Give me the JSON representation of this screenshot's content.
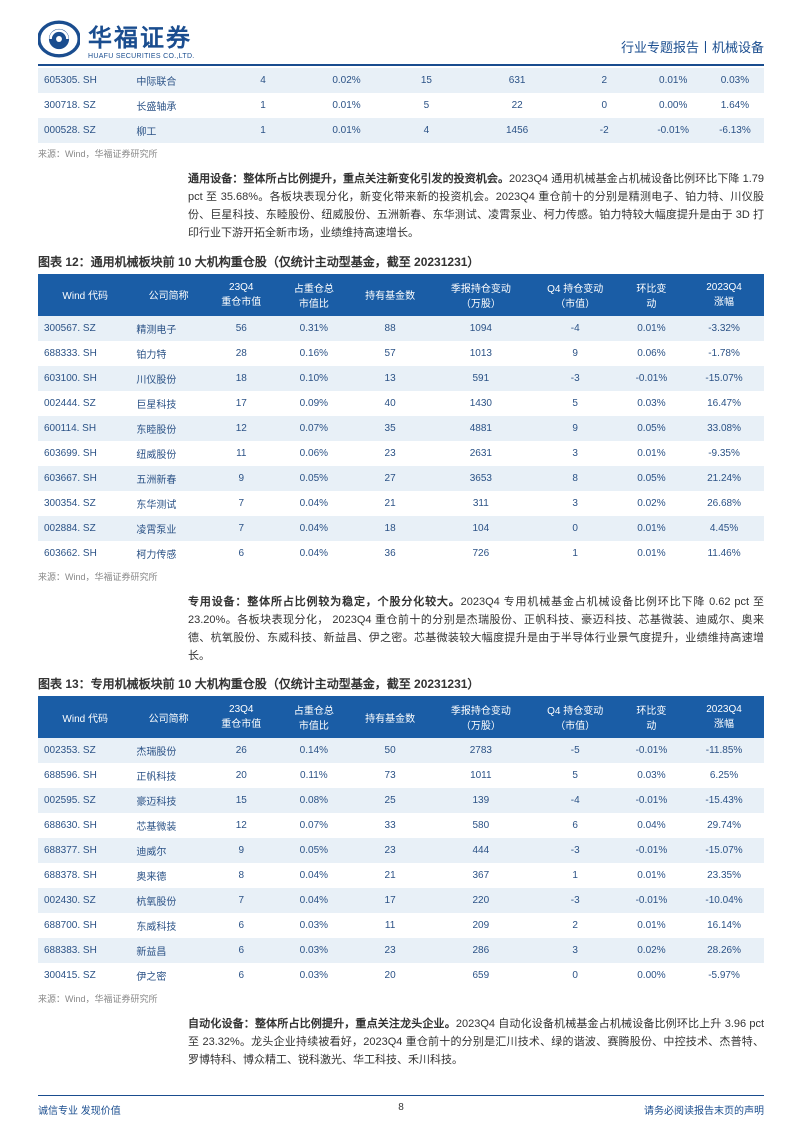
{
  "header": {
    "logo_cn": "华福证券",
    "logo_en": "HUAFU SECURITIES CO.,LTD.",
    "right": "行业专题报告丨机械设备"
  },
  "top_table": {
    "col_widths": [
      "13%",
      "12%",
      "12%",
      "11%",
      "11%",
      "14%",
      "10%",
      "9%",
      "8%"
    ],
    "rows": [
      {
        "cells": [
          "605305. SH",
          "中际联合",
          "4",
          "0.02%",
          "15",
          "631",
          "2",
          "0.01%",
          "0.03%"
        ],
        "bg": "row-light"
      },
      {
        "cells": [
          "300718. SZ",
          "长盛轴承",
          "1",
          "0.01%",
          "5",
          "22",
          "0",
          "0.00%",
          "1.64%"
        ],
        "bg": "row-white"
      },
      {
        "cells": [
          "000528. SZ",
          "柳工",
          "1",
          "0.01%",
          "4",
          "1456",
          "-2",
          "-0.01%",
          "-6.13%"
        ],
        "bg": "row-light"
      }
    ]
  },
  "source_text": "来源：Wind，华福证券研究所",
  "para1": {
    "bold": "通用设备：整体所占比例提升，重点关注新变化引发的投资机会。",
    "rest": "2023Q4 通用机械基金占机械设备比例环比下降 1.79 pct 至 35.68%。各板块表现分化，新变化带来新的投资机会。2023Q4 重仓前十的分别是精测电子、铂力特、川仪股份、巨星科技、东睦股份、纽威股份、五洲新春、东华测试、凌霄泵业、柯力传感。铂力特较大幅度提升是由于 3D 打印行业下游开拓全新市场，业绩维持高速增长。"
  },
  "table12_title": "图表 12：通用机械板块前 10 大机构重仓股（仅统计主动型基金，截至 20231231）",
  "table_headers": [
    "Wind 代码",
    "公司简称",
    "23Q4\n重仓市值",
    "占重仓总\n市值比",
    "持有基金数",
    "季报持仓变动\n（万股）",
    "Q4 持仓变动\n（市值）",
    "环比变\n动",
    "2023Q4\n涨幅"
  ],
  "col_widths_main": [
    "13%",
    "10%",
    "10%",
    "10%",
    "11%",
    "14%",
    "12%",
    "9%",
    "11%"
  ],
  "table12_rows": [
    {
      "cells": [
        "300567. SZ",
        "精测电子",
        "56",
        "0.31%",
        "88",
        "1094",
        "-4",
        "0.01%",
        "-3.32%"
      ],
      "bg": "row-light"
    },
    {
      "cells": [
        "688333. SH",
        "铂力特",
        "28",
        "0.16%",
        "57",
        "1013",
        "9",
        "0.06%",
        "-1.78%"
      ],
      "bg": "row-white"
    },
    {
      "cells": [
        "603100. SH",
        "川仪股份",
        "18",
        "0.10%",
        "13",
        "591",
        "-3",
        "-0.01%",
        "-15.07%"
      ],
      "bg": "row-light"
    },
    {
      "cells": [
        "002444. SZ",
        "巨星科技",
        "17",
        "0.09%",
        "40",
        "1430",
        "5",
        "0.03%",
        "16.47%"
      ],
      "bg": "row-white"
    },
    {
      "cells": [
        "600114. SH",
        "东睦股份",
        "12",
        "0.07%",
        "35",
        "4881",
        "9",
        "0.05%",
        "33.08%"
      ],
      "bg": "row-light"
    },
    {
      "cells": [
        "603699. SH",
        "纽威股份",
        "11",
        "0.06%",
        "23",
        "2631",
        "3",
        "0.01%",
        "-9.35%"
      ],
      "bg": "row-white"
    },
    {
      "cells": [
        "603667. SH",
        "五洲新春",
        "9",
        "0.05%",
        "27",
        "3653",
        "8",
        "0.05%",
        "21.24%"
      ],
      "bg": "row-light"
    },
    {
      "cells": [
        "300354. SZ",
        "东华测试",
        "7",
        "0.04%",
        "21",
        "311",
        "3",
        "0.02%",
        "26.68%"
      ],
      "bg": "row-white"
    },
    {
      "cells": [
        "002884. SZ",
        "凌霄泵业",
        "7",
        "0.04%",
        "18",
        "104",
        "0",
        "0.01%",
        "4.45%"
      ],
      "bg": "row-light"
    },
    {
      "cells": [
        "603662. SH",
        "柯力传感",
        "6",
        "0.04%",
        "36",
        "726",
        "1",
        "0.01%",
        "11.46%"
      ],
      "bg": "row-white"
    }
  ],
  "para2": {
    "bold": "专用设备：整体所占比例较为稳定，个股分化较大。",
    "rest": "2023Q4 专用机械基金占机械设备比例环比下降 0.62 pct 至 23.20%。各板块表现分化， 2023Q4 重仓前十的分别是杰瑞股份、正帆科技、豪迈科技、芯基微装、迪威尔、奥来德、杭氧股份、东威科技、新益昌、伊之密。芯基微装较大幅度提升是由于半导体行业景气度提升，业绩维持高速增长。"
  },
  "table13_title": "图表 13：专用机械板块前 10 大机构重仓股（仅统计主动型基金，截至 20231231）",
  "table13_rows": [
    {
      "cells": [
        "002353. SZ",
        "杰瑞股份",
        "26",
        "0.14%",
        "50",
        "2783",
        "-5",
        "-0.01%",
        "-11.85%"
      ],
      "bg": "row-light"
    },
    {
      "cells": [
        "688596. SH",
        "正帆科技",
        "20",
        "0.11%",
        "73",
        "1011",
        "5",
        "0.03%",
        "6.25%"
      ],
      "bg": "row-white"
    },
    {
      "cells": [
        "002595. SZ",
        "豪迈科技",
        "15",
        "0.08%",
        "25",
        "139",
        "-4",
        "-0.01%",
        "-15.43%"
      ],
      "bg": "row-light"
    },
    {
      "cells": [
        "688630. SH",
        "芯基微装",
        "12",
        "0.07%",
        "33",
        "580",
        "6",
        "0.04%",
        "29.74%"
      ],
      "bg": "row-white"
    },
    {
      "cells": [
        "688377. SH",
        "迪威尔",
        "9",
        "0.05%",
        "23",
        "444",
        "-3",
        "-0.01%",
        "-15.07%"
      ],
      "bg": "row-light"
    },
    {
      "cells": [
        "688378. SH",
        "奥来德",
        "8",
        "0.04%",
        "21",
        "367",
        "1",
        "0.01%",
        "23.35%"
      ],
      "bg": "row-white"
    },
    {
      "cells": [
        "002430. SZ",
        "杭氧股份",
        "7",
        "0.04%",
        "17",
        "220",
        "-3",
        "-0.01%",
        "-10.04%"
      ],
      "bg": "row-light"
    },
    {
      "cells": [
        "688700. SH",
        "东威科技",
        "6",
        "0.03%",
        "11",
        "209",
        "2",
        "0.01%",
        "16.14%"
      ],
      "bg": "row-white"
    },
    {
      "cells": [
        "688383. SH",
        "新益昌",
        "6",
        "0.03%",
        "23",
        "286",
        "3",
        "0.02%",
        "28.26%"
      ],
      "bg": "row-light"
    },
    {
      "cells": [
        "300415. SZ",
        "伊之密",
        "6",
        "0.03%",
        "20",
        "659",
        "0",
        "0.00%",
        "-5.97%"
      ],
      "bg": "row-white"
    }
  ],
  "para3": {
    "bold": "自动化设备：整体所占比例提升，重点关注龙头企业。",
    "rest": "2023Q4 自动化设备机械基金占机械设备比例环比上升 3.96 pct 至 23.32%。龙头企业持续被看好，2023Q4 重仓前十的分别是汇川技术、绿的谐波、赛腾股份、中控技术、杰普特、罗博特科、博众精工、锐科激光、华工科技、禾川科技。"
  },
  "footer": {
    "left": "诚信专业  发现价值",
    "page": "8",
    "right": "请务必阅读报告末页的声明"
  }
}
